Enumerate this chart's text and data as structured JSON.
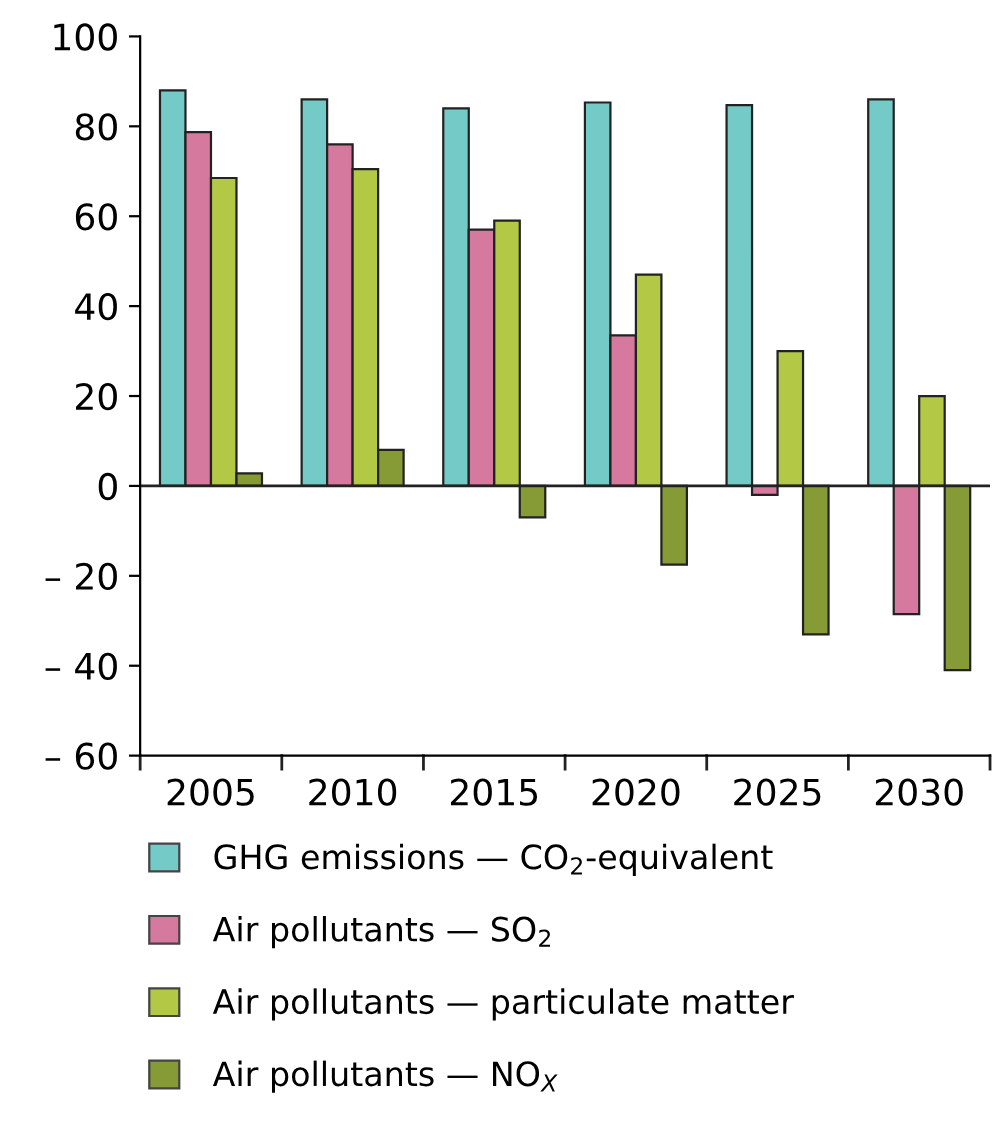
{
  "chart_data": {
    "type": "bar",
    "categories": [
      "2005",
      "2010",
      "2015",
      "2020",
      "2025",
      "2030"
    ],
    "series": [
      {
        "name": "GHG emissions — CO$_{2}$-equivalent",
        "color": "#74cac7",
        "values": [
          88,
          86,
          84,
          85.3,
          84.7,
          86
        ]
      },
      {
        "name": "Air pollutants — SO$_{2}$",
        "color": "#d57a9e",
        "values": [
          78.7,
          76,
          57,
          33.5,
          -2,
          -28.5
        ]
      },
      {
        "name": "Air pollutants — particulate matter",
        "color": "#b3c946",
        "values": [
          68.5,
          70.5,
          59,
          47,
          30,
          20
        ]
      },
      {
        "name": "Air pollutants — NO$_{X}$",
        "color": "#869a36",
        "values": [
          2.8,
          8,
          -7,
          -17.5,
          -33,
          -41
        ]
      }
    ],
    "ylim": [
      -60,
      100
    ],
    "yticks": [
      {
        "value": -60,
        "label": "– 60"
      },
      {
        "value": -40,
        "label": "– 40"
      },
      {
        "value": -20,
        "label": "– 20"
      },
      0,
      20,
      40,
      60,
      80,
      100
    ],
    "ref_lines": [
      {
        "axis": "y",
        "value": 0,
        "color": "#222222"
      }
    ],
    "legend": "bottom"
  }
}
